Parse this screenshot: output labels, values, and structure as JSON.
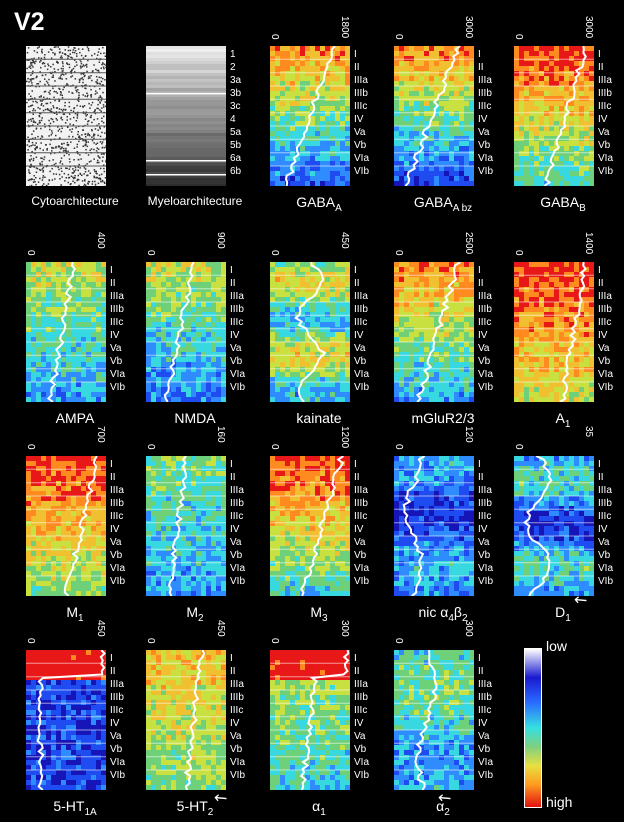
{
  "title": "V2",
  "layers": [
    "I",
    "II",
    "IIIa",
    "IIIb",
    "IIIc",
    "IV",
    "Va",
    "Vb",
    "VIa",
    "VIb"
  ],
  "myelo_layers": [
    "1",
    "2",
    "3a",
    "3b",
    "3c",
    "4",
    "5a",
    "5b",
    "6a",
    "6b"
  ],
  "panels": [
    {
      "id": "cyto",
      "label": "Cytoarchitecture",
      "kind": "cyto"
    },
    {
      "id": "myelo",
      "label": "Myeloarchitecture",
      "kind": "myelo"
    },
    {
      "id": "gabaa",
      "label": "GABAA",
      "sub": "A",
      "base": "GABA",
      "max": "1800",
      "min": "0"
    },
    {
      "id": "gabaabz",
      "label": "GABAA bz",
      "sub": "A bz",
      "base": "GABA",
      "max": "3000",
      "min": "0"
    },
    {
      "id": "gabab",
      "label": "GABAB",
      "sub": "B",
      "base": "GABA",
      "max": "3000",
      "min": "0"
    },
    {
      "id": "ampa",
      "label": "AMPA",
      "base": "AMPA",
      "max": "400",
      "min": "0"
    },
    {
      "id": "nmda",
      "label": "NMDA",
      "base": "NMDA",
      "max": "900",
      "min": "0"
    },
    {
      "id": "kainate",
      "label": "kainate",
      "base": "kainate",
      "max": "450",
      "min": "0"
    },
    {
      "id": "mglur",
      "label": "mGluR2/3",
      "base": "mGluR2/3",
      "max": "2500",
      "min": "0"
    },
    {
      "id": "a1",
      "label": "A1",
      "base": "A",
      "sub": "1",
      "max": "1400",
      "min": "0"
    },
    {
      "id": "m1",
      "label": "M1",
      "base": "M",
      "sub": "1",
      "max": "700",
      "min": "0"
    },
    {
      "id": "m2",
      "label": "M2",
      "base": "M",
      "sub": "2",
      "max": "160",
      "min": "0"
    },
    {
      "id": "m3",
      "label": "M3",
      "base": "M",
      "sub": "3",
      "max": "1200",
      "min": "0"
    },
    {
      "id": "nic",
      "label": "nic α4β2",
      "base": "nic α",
      "sub": "4",
      "base2": "β",
      "sub2": "2",
      "max": "120",
      "min": "0"
    },
    {
      "id": "d1",
      "label": "D1",
      "base": "D",
      "sub": "1",
      "max": "35",
      "min": "0"
    },
    {
      "id": "ht1a",
      "label": "5-HT1A",
      "base": "5-HT",
      "sub": "1A",
      "max": "450",
      "min": "0"
    },
    {
      "id": "ht2",
      "label": "5-HT2",
      "base": "5-HT",
      "sub": "2",
      "max": "450",
      "min": "0"
    },
    {
      "id": "alpha1",
      "label": "α1",
      "base": "α",
      "sub": "1",
      "max": "300",
      "min": "0"
    },
    {
      "id": "alpha2",
      "label": "α2",
      "base": "α",
      "sub": "2",
      "max": "300",
      "min": "0"
    }
  ],
  "legend": {
    "low": "low",
    "high": "high"
  }
}
